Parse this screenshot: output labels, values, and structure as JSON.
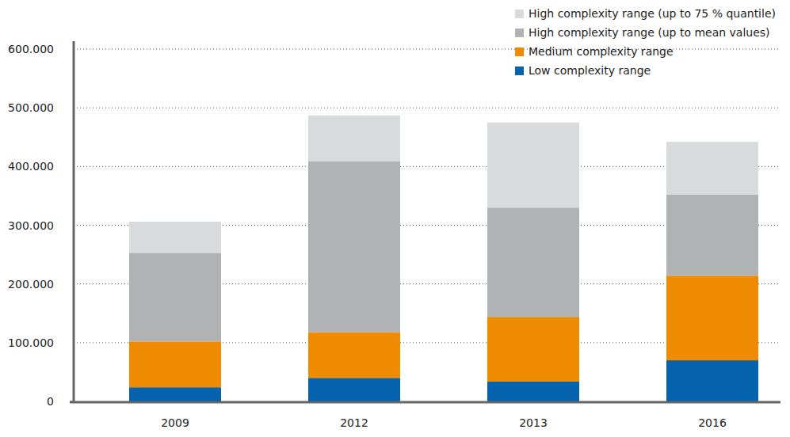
{
  "chart_data": {
    "type": "bar",
    "stacked": true,
    "grid": true,
    "legend": "top-right",
    "categories": [
      "2009",
      "2012",
      "2013",
      "2016"
    ],
    "series": [
      {
        "name": "Low complexity range",
        "color": "#0563ad",
        "values": [
          24000,
          40000,
          34000,
          70000
        ]
      },
      {
        "name": "Medium complexity range",
        "color": "#ee8b00",
        "values": [
          78000,
          78000,
          110000,
          144000
        ]
      },
      {
        "name": "High complexity range (up to mean values)",
        "color": "#b1b2b4",
        "values": [
          151000,
          291000,
          186000,
          138000
        ]
      },
      {
        "name": "High complexity range (up to 75 % quantile)",
        "color": "#d9dadb",
        "values": [
          53000,
          78000,
          145000,
          90000
        ]
      }
    ],
    "ylim": [
      0,
      600000
    ],
    "yticks": [
      0,
      {
        "value": 100000,
        "label": "100.000"
      },
      {
        "value": 200000,
        "label": "200.000"
      },
      {
        "value": 300000,
        "label": "300.000"
      },
      {
        "value": 400000,
        "label": "400.000"
      },
      {
        "value": 500000,
        "label": "500.000"
      },
      {
        "value": 600000,
        "label": "600.000"
      }
    ]
  }
}
